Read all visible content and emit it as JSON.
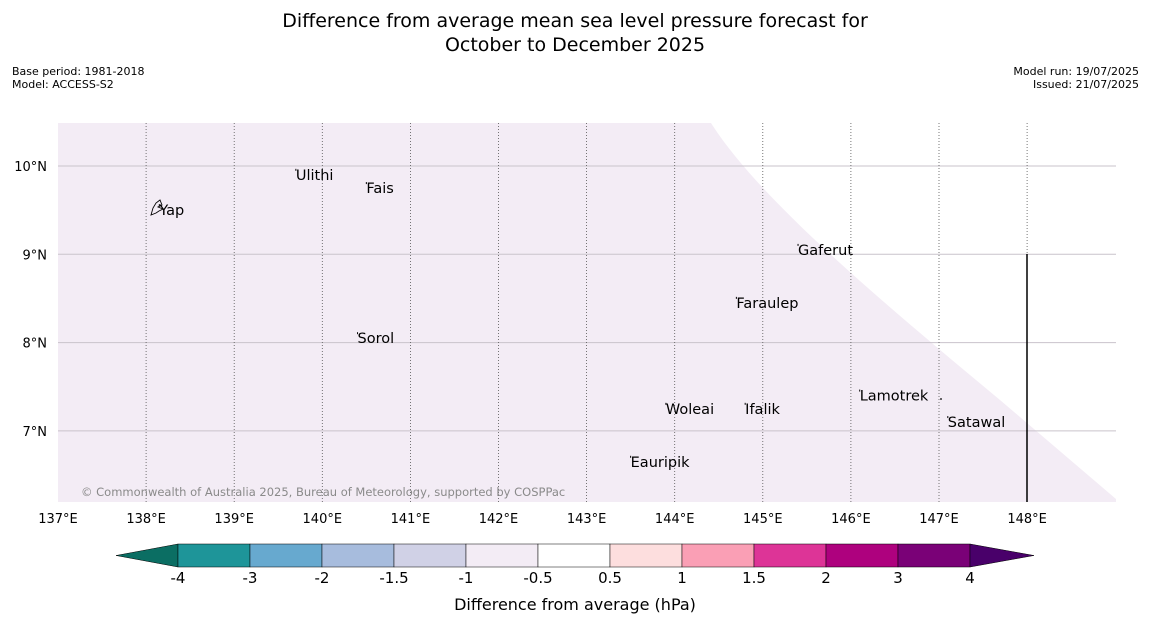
{
  "title": {
    "line1": "Difference from average mean sea level pressure forecast for",
    "line2": "October to December 2025"
  },
  "meta": {
    "base_period": "Base period: 1981-2018",
    "model": "Model: ACCESS-S2",
    "model_run": "Model run: 19/07/2025",
    "issued": "Issued: 21/07/2025"
  },
  "map": {
    "lon_range": [
      137,
      149
    ],
    "lat_range": [
      6.2,
      10.5
    ],
    "lon_ticks": [
      {
        "value": 137,
        "label": "137°E"
      },
      {
        "value": 138,
        "label": "138°E"
      },
      {
        "value": 139,
        "label": "139°E"
      },
      {
        "value": 140,
        "label": "140°E"
      },
      {
        "value": 141,
        "label": "141°E"
      },
      {
        "value": 142,
        "label": "142°E"
      },
      {
        "value": 143,
        "label": "143°E"
      },
      {
        "value": 144,
        "label": "144°E"
      },
      {
        "value": 145,
        "label": "145°E"
      },
      {
        "value": 146,
        "label": "146°E"
      },
      {
        "value": 147,
        "label": "147°E"
      },
      {
        "value": 148,
        "label": "148°E"
      }
    ],
    "lat_ticks": [
      {
        "value": 10,
        "label": "10°N"
      },
      {
        "value": 9,
        "label": "9°N"
      },
      {
        "value": 8,
        "label": "8°N"
      },
      {
        "value": 7,
        "label": "7°N"
      }
    ],
    "places": [
      {
        "name": "Yap",
        "lon": 138.15,
        "lat": 9.5
      },
      {
        "name": "Ulithi",
        "lon": 139.7,
        "lat": 9.9
      },
      {
        "name": "Fais",
        "lon": 140.5,
        "lat": 9.75
      },
      {
        "name": "Gaferut",
        "lon": 145.4,
        "lat": 9.05
      },
      {
        "name": "Faraulep",
        "lon": 144.7,
        "lat": 8.45
      },
      {
        "name": "Sorol",
        "lon": 140.4,
        "lat": 8.05
      },
      {
        "name": "Woleai",
        "lon": 143.9,
        "lat": 7.25
      },
      {
        "name": "Ifalik",
        "lon": 144.8,
        "lat": 7.25
      },
      {
        "name": "Lamotrek",
        "lon": 146.1,
        "lat": 7.4
      },
      {
        "name": "Satawal",
        "lon": 147.1,
        "lat": 7.1
      },
      {
        "name": "Eauripik",
        "lon": 143.5,
        "lat": 6.65
      }
    ],
    "fill_category": "-1 to -0.5",
    "fill_color": "#f3ecf5",
    "copyright": "© Commonwealth of Australia 2025, Bureau of Meteorology, supported by COSPPac"
  },
  "colorbar": {
    "label": "Difference from average (hPa)",
    "colors": [
      "#0b6e63",
      "#1e9599",
      "#67a9cf",
      "#a7bcdd",
      "#d0d1e6",
      "#f3ecf5",
      "#ffffff",
      "#fddede",
      "#fa9fb5",
      "#dd3497",
      "#ae017e",
      "#7a0177",
      "#49006a"
    ],
    "ticks": [
      "-4",
      "-3",
      "-2",
      "-1.5",
      "-1",
      "-0.5",
      "0.5",
      "1",
      "1.5",
      "2",
      "3",
      "4"
    ]
  }
}
